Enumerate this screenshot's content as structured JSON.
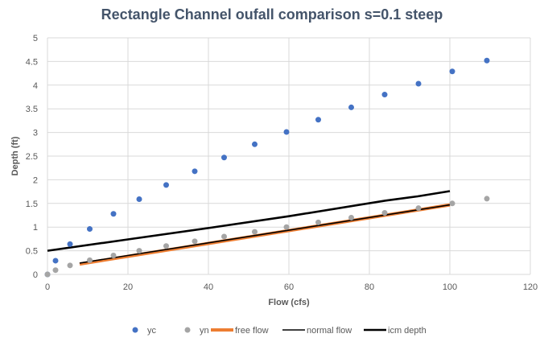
{
  "chart_data": {
    "type": "scatter",
    "title": "Rectangle Channel oufall comparison s=0.1 steep",
    "xlabel": "Flow (cfs)",
    "ylabel": "Depth (ft)",
    "xlim": [
      0,
      120
    ],
    "ylim": [
      0,
      5
    ],
    "xticks": [
      "0",
      "20",
      "40",
      "60",
      "80",
      "100",
      "120"
    ],
    "yticks": [
      "0",
      "0.5",
      "1",
      "1.5",
      "2",
      "2.5",
      "3",
      "3.5",
      "4",
      "4.5",
      "5"
    ],
    "grid": true,
    "legend_position": "bottom",
    "series": [
      {
        "name": "yc",
        "kind": "markers",
        "color": "#4472c4",
        "points": [
          [
            0,
            0
          ],
          [
            2,
            0.29
          ],
          [
            5.6,
            0.64
          ],
          [
            10.5,
            0.96
          ],
          [
            16.4,
            1.28
          ],
          [
            22.8,
            1.59
          ],
          [
            29.5,
            1.89
          ],
          [
            36.6,
            2.18
          ],
          [
            43.9,
            2.47
          ],
          [
            51.5,
            2.75
          ],
          [
            59.4,
            3.01
          ],
          [
            67.3,
            3.27
          ],
          [
            75.5,
            3.53
          ],
          [
            83.8,
            3.8
          ],
          [
            92.2,
            4.03
          ],
          [
            100.6,
            4.29
          ],
          [
            109.2,
            4.52
          ]
        ]
      },
      {
        "name": "yn",
        "kind": "markers",
        "color": "#a5a5a5",
        "points": [
          [
            0,
            0
          ],
          [
            2,
            0.09
          ],
          [
            5.6,
            0.19
          ],
          [
            10.5,
            0.3
          ],
          [
            16.4,
            0.4
          ],
          [
            22.8,
            0.5
          ],
          [
            29.5,
            0.6
          ],
          [
            36.6,
            0.7
          ],
          [
            43.9,
            0.8
          ],
          [
            51.5,
            0.9
          ],
          [
            59.4,
            1.0
          ],
          [
            67.3,
            1.1
          ],
          [
            75.5,
            1.2
          ],
          [
            83.8,
            1.3
          ],
          [
            92.2,
            1.4
          ],
          [
            100.6,
            1.5
          ],
          [
            109.2,
            1.6
          ]
        ]
      },
      {
        "name": "free flow",
        "kind": "line",
        "color": "#ed7d31",
        "points": [
          [
            8,
            0.22
          ],
          [
            100,
            1.47
          ]
        ]
      },
      {
        "name": "normal flow",
        "kind": "line",
        "color": "#000000",
        "points": [
          [
            8,
            0.24
          ],
          [
            100,
            1.47
          ]
        ]
      },
      {
        "name": "icm depth",
        "kind": "line",
        "color": "#000000",
        "points": [
          [
            0,
            0.5
          ],
          [
            20,
            0.74
          ],
          [
            40,
            0.98
          ],
          [
            60,
            1.23
          ],
          [
            84,
            1.56
          ],
          [
            92,
            1.65
          ],
          [
            100,
            1.76
          ]
        ]
      }
    ]
  }
}
